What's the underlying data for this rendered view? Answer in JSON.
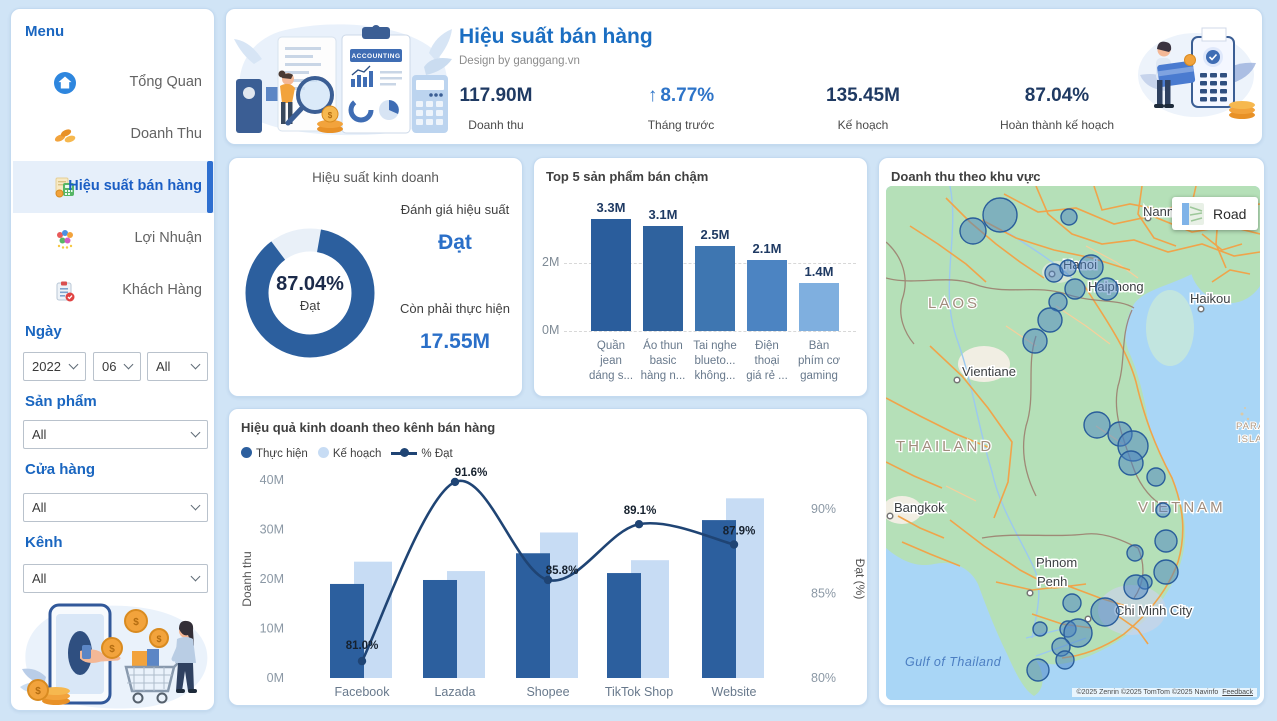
{
  "sidebar": {
    "menu_title": "Menu",
    "items": [
      {
        "label": "Tổng Quan"
      },
      {
        "label": "Doanh Thu"
      },
      {
        "label": "Hiệu suất bán hàng"
      },
      {
        "label": "Lợi Nhuận"
      },
      {
        "label": "Khách Hàng"
      }
    ],
    "filters": {
      "date": {
        "label": "Ngày",
        "year": "2022",
        "month": "06",
        "day": "All"
      },
      "product": {
        "label": "Sản phẩm",
        "value": "All"
      },
      "store": {
        "label": "Cửa hàng",
        "value": "All"
      },
      "channel": {
        "label": "Kênh",
        "value": "All"
      }
    }
  },
  "header": {
    "title": "Hiệu suất bán hàng",
    "subtitle": "Design by ganggang.vn",
    "illustration_caption": "ACCOUNTING",
    "kpis": [
      {
        "value": "117.90M",
        "label": "Doanh thu"
      },
      {
        "value": "8.77%",
        "label": "Tháng trước",
        "trend": "up",
        "arrow": "↑"
      },
      {
        "value": "135.45M",
        "label": "Kế hoạch"
      },
      {
        "value": "87.04%",
        "label": "Hoàn thành kế hoạch"
      }
    ]
  },
  "donut_panel": {
    "title": "Hiệu suất kinh doanh",
    "center_value": "87.04%",
    "center_label": "Đạt",
    "eval_label": "Đánh giá hiệu suất",
    "eval_value": "Đạt",
    "remaining_label": "Còn phải thực hiện",
    "remaining_value": "17.55M"
  },
  "top5_panel": {
    "title": "Top 5 sản phẩm bán chậm"
  },
  "combo_panel": {
    "title": "Hiệu quả kinh doanh theo kênh bán hàng",
    "legend": [
      {
        "label": "Thực hiện"
      },
      {
        "label": "Kế hoạch"
      },
      {
        "label": "% Đạt"
      }
    ]
  },
  "map_panel": {
    "title": "Doanh thu theo khu vực",
    "road_button_label": "Road",
    "copyright": "©2025 Zenrin  ©2025 TomTom  ©2025 Navinfo",
    "feedback_label": "Feedback"
  },
  "colors": {
    "actual_bar": "#2c5f9e",
    "plan_bar": "#c7dcf4",
    "line": "#1f4474",
    "accent_blue": "#2a6fc8",
    "kpi_navy": "#1f3a63"
  },
  "chart_data": [
    {
      "id": "performance-donut",
      "type": "pie",
      "title": "Hiệu suất kinh doanh",
      "labels": [
        "Đạt",
        "Còn phải thực hiện"
      ],
      "values": [
        87.04,
        12.96
      ],
      "colors": [
        "#2c5f9e",
        "#e9f0f8"
      ]
    },
    {
      "id": "top5-slow-products",
      "type": "bar",
      "title": "Top 5 sản phẩm bán chậm",
      "categories": [
        [
          "Quần",
          "jean",
          "dáng s..."
        ],
        [
          "Áo thun",
          "basic",
          "hàng n..."
        ],
        [
          "Tai nghe",
          "blueto...",
          "không..."
        ],
        [
          "Điện",
          "thoại",
          "giá rẻ ..."
        ],
        [
          "Bàn",
          "phím cơ",
          "gaming"
        ]
      ],
      "values": [
        3.3,
        3.1,
        2.5,
        2.1,
        1.4
      ],
      "value_labels": [
        "3.3M",
        "3.1M",
        "2.5M",
        "2.1M",
        "1.4M"
      ],
      "bar_colors": [
        "#2a5d9c",
        "#2f629e",
        "#3e76b1",
        "#4c84c2",
        "#7fafdf"
      ],
      "yticks": [
        {
          "label": "0M",
          "value": 0
        },
        {
          "label": "2M",
          "value": 2
        }
      ],
      "ylim": [
        0,
        3.5
      ],
      "grid": true
    },
    {
      "id": "channel-performance",
      "type": "bar+line",
      "title": "Hiệu quả kinh doanh theo kênh bán hàng",
      "categories": [
        "Facebook",
        "Lazada",
        "Shopee",
        "TikTok Shop",
        "Website"
      ],
      "series": [
        {
          "name": "Thực hiện",
          "type": "bar",
          "values": [
            19.0,
            19.8,
            25.2,
            21.2,
            31.9
          ]
        },
        {
          "name": "Kế hoạch",
          "type": "bar",
          "values": [
            23.5,
            21.6,
            29.4,
            23.8,
            36.3
          ]
        },
        {
          "name": "% Đạt",
          "type": "line",
          "values": [
            81.0,
            91.6,
            85.8,
            89.1,
            87.9
          ],
          "labels": [
            "81.0%",
            "91.6%",
            "85.8%",
            "89.1%",
            "87.9%"
          ]
        }
      ],
      "y_left": {
        "label": "Doanh thu",
        "ticks": [
          "0M",
          "10M",
          "20M",
          "30M",
          "40M"
        ],
        "range": [
          0,
          40
        ]
      },
      "y_right": {
        "label": "Đạt (%)",
        "ticks": [
          "80%",
          "85%",
          "90%"
        ],
        "range": [
          80,
          92.5
        ]
      },
      "legend_position": "top-left",
      "grid": false
    },
    {
      "id": "revenue-map",
      "type": "scatter",
      "title": "Doanh thu theo khu vực",
      "map_labels": [
        {
          "text": "Nanning",
          "x": 257,
          "y": 30,
          "kind": "city"
        },
        {
          "text": "Hanoi",
          "x": 177,
          "y": 83,
          "kind": "city"
        },
        {
          "text": "Haiphong",
          "x": 202,
          "y": 105,
          "kind": "city"
        },
        {
          "text": "Haikou",
          "x": 304,
          "y": 117,
          "kind": "city"
        },
        {
          "text": "Vientiane",
          "x": 76,
          "y": 190,
          "kind": "city"
        },
        {
          "text": "Bangkok",
          "x": 8,
          "y": 326,
          "kind": "city"
        },
        {
          "text": "Phnom",
          "x": 150,
          "y": 381,
          "kind": "city"
        },
        {
          "text": "Penh",
          "x": 151,
          "y": 400,
          "kind": "city"
        },
        {
          "text": "Chi Minh City",
          "x": 229,
          "y": 429,
          "kind": "city"
        },
        {
          "text": "LAOS",
          "x": 42,
          "y": 122,
          "kind": "country"
        },
        {
          "text": "THAILAND",
          "x": 10,
          "y": 265,
          "kind": "country"
        },
        {
          "text": "VIETNAM",
          "x": 252,
          "y": 326,
          "kind": "country"
        },
        {
          "text": "PARACEL",
          "x": 350,
          "y": 243,
          "kind": "country-small"
        },
        {
          "text": "ISLANDS",
          "x": 352,
          "y": 256,
          "kind": "country-small"
        },
        {
          "text": "Gulf of Thailand",
          "x": 19,
          "y": 480,
          "kind": "sea"
        }
      ],
      "bubbles": [
        {
          "x": 87,
          "y": 45,
          "r": 13
        },
        {
          "x": 114,
          "y": 29,
          "r": 17
        },
        {
          "x": 183,
          "y": 31,
          "r": 8
        },
        {
          "x": 168,
          "y": 87,
          "r": 9
        },
        {
          "x": 182,
          "y": 82,
          "r": 8
        },
        {
          "x": 205,
          "y": 81,
          "r": 12
        },
        {
          "x": 189,
          "y": 103,
          "r": 10
        },
        {
          "x": 221,
          "y": 103,
          "r": 11
        },
        {
          "x": 172,
          "y": 116,
          "r": 9
        },
        {
          "x": 164,
          "y": 134,
          "r": 12
        },
        {
          "x": 149,
          "y": 155,
          "r": 12
        },
        {
          "x": 211,
          "y": 239,
          "r": 13
        },
        {
          "x": 234,
          "y": 248,
          "r": 12
        },
        {
          "x": 247,
          "y": 260,
          "r": 15
        },
        {
          "x": 245,
          "y": 277,
          "r": 12
        },
        {
          "x": 270,
          "y": 291,
          "r": 9
        },
        {
          "x": 277,
          "y": 324,
          "r": 7
        },
        {
          "x": 280,
          "y": 355,
          "r": 11
        },
        {
          "x": 249,
          "y": 367,
          "r": 8
        },
        {
          "x": 280,
          "y": 386,
          "r": 12
        },
        {
          "x": 259,
          "y": 396,
          "r": 7
        },
        {
          "x": 250,
          "y": 401,
          "r": 12
        },
        {
          "x": 186,
          "y": 417,
          "r": 9
        },
        {
          "x": 219,
          "y": 426,
          "r": 14
        },
        {
          "x": 182,
          "y": 443,
          "r": 8
        },
        {
          "x": 192,
          "y": 447,
          "r": 14
        },
        {
          "x": 154,
          "y": 443,
          "r": 7
        },
        {
          "x": 175,
          "y": 461,
          "r": 9
        },
        {
          "x": 179,
          "y": 474,
          "r": 9
        },
        {
          "x": 152,
          "y": 484,
          "r": 11
        }
      ]
    }
  ]
}
